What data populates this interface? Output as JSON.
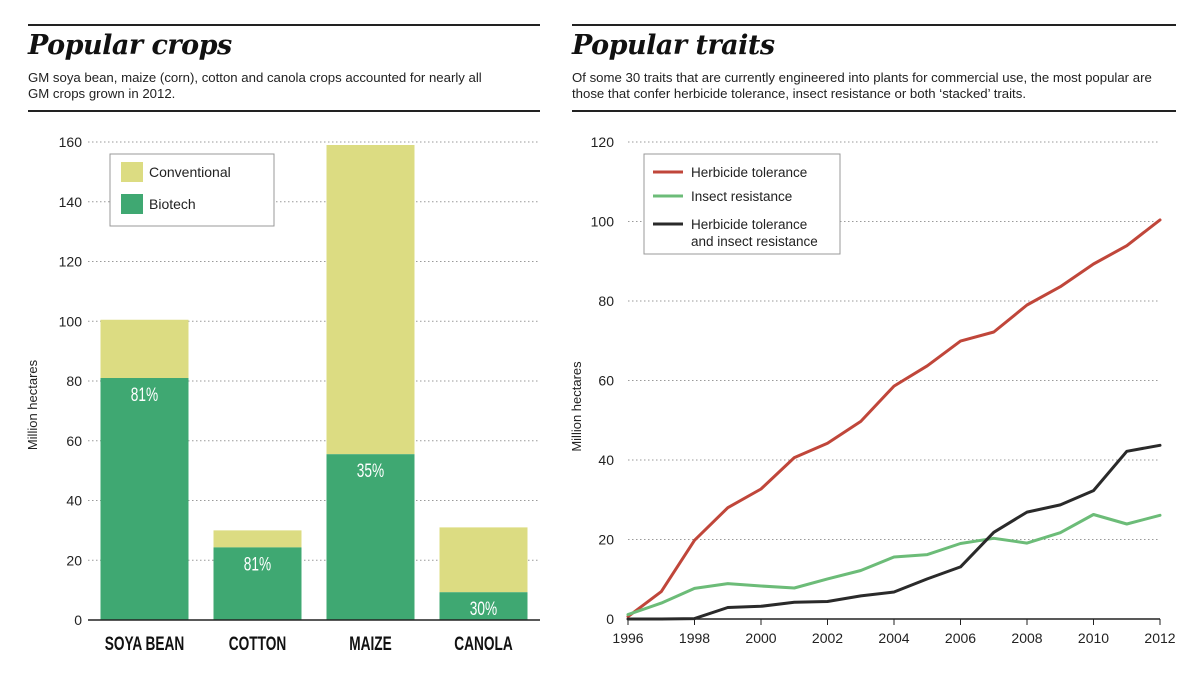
{
  "left": {
    "title": "Popular crops",
    "subtitle": "GM soya bean, maize (corn), cotton and canola crops accounted for nearly all GM crops grown in 2012."
  },
  "right": {
    "title": "Popular traits",
    "subtitle": "Of some 30 traits that are currently engineered into plants for commercial use, the most popular are those that confer herbicide tolerance, insect resistance or both ‘stacked’ traits."
  },
  "colors": {
    "conventional": "#dcdc82",
    "biotech": "#3fa872",
    "herbicide": "#c0463a",
    "insect": "#6cbc78",
    "stacked": "#2a2a2a"
  },
  "chart_data": [
    {
      "type": "bar",
      "stacked": true,
      "categories": [
        "SOYA BEAN",
        "COTTON",
        "MAIZE",
        "CANOLA"
      ],
      "series": [
        {
          "name": "Biotech",
          "values": [
            81,
            24.3,
            55.5,
            9.3
          ]
        },
        {
          "name": "Conventional",
          "values": [
            19.5,
            5.7,
            103.5,
            21.7
          ]
        }
      ],
      "data_labels": [
        "81%",
        "81%",
        "35%",
        "30%"
      ],
      "xlabel": "",
      "ylabel": "Million hectares",
      "ylim": [
        0,
        160
      ],
      "yticks": [
        0,
        20,
        40,
        60,
        80,
        100,
        120,
        140,
        160
      ],
      "grid": true,
      "legend": "top-left",
      "legend_order": [
        "Conventional",
        "Biotech"
      ]
    },
    {
      "type": "line",
      "x": [
        1996,
        1997,
        1998,
        1999,
        2000,
        2001,
        2002,
        2003,
        2004,
        2005,
        2006,
        2007,
        2008,
        2009,
        2010,
        2011,
        2012
      ],
      "series": [
        {
          "name": "Herbicide tolerance",
          "values": [
            0.6,
            6.9,
            19.8,
            28,
            32.7,
            40.6,
            44.2,
            49.7,
            58.6,
            63.7,
            69.9,
            72.2,
            79,
            83.6,
            89.3,
            93.9,
            100.4
          ]
        },
        {
          "name": "Insect resistance",
          "values": [
            1.1,
            4,
            7.7,
            8.9,
            8.3,
            7.8,
            10.1,
            12.2,
            15.6,
            16.2,
            19,
            20.3,
            19.1,
            21.7,
            26.3,
            23.9,
            26.1
          ]
        },
        {
          "name": "Herbicide tolerance and insect resistance",
          "values": [
            0,
            0,
            0.1,
            2.9,
            3.2,
            4.2,
            4.4,
            5.8,
            6.8,
            10.1,
            13.1,
            21.8,
            26.9,
            28.7,
            32.3,
            42.2,
            43.7
          ]
        }
      ],
      "legend_lines": [
        [
          "Herbicide tolerance"
        ],
        [
          "Insect resistance"
        ],
        [
          "Herbicide tolerance",
          "and insect resistance"
        ]
      ],
      "xlabel": "",
      "ylabel": "Million hectares",
      "xlim": [
        1996,
        2012
      ],
      "xticks": [
        1996,
        1998,
        2000,
        2002,
        2004,
        2006,
        2008,
        2010,
        2012
      ],
      "ylim": [
        0,
        120
      ],
      "yticks": [
        0,
        20,
        40,
        60,
        80,
        100,
        120
      ],
      "grid": true,
      "legend": "top-left"
    }
  ]
}
